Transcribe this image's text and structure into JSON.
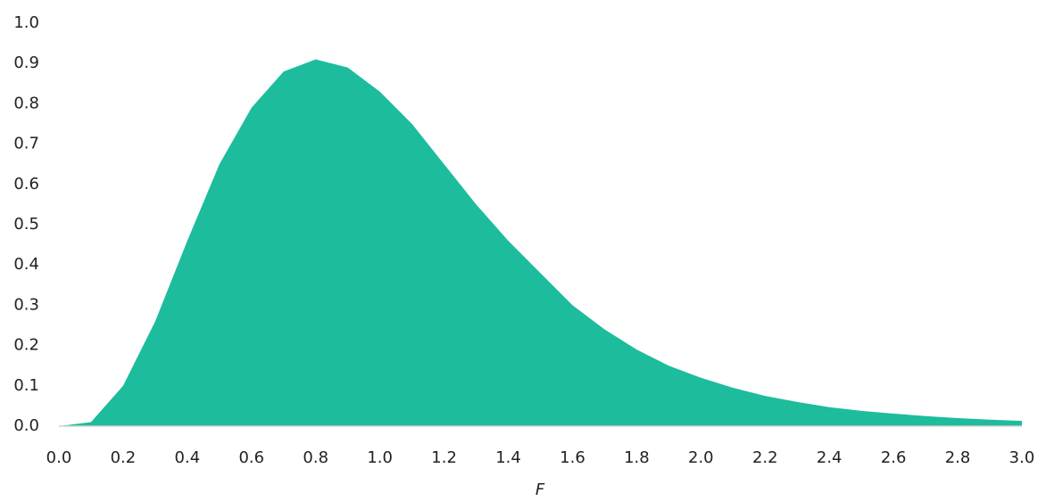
{
  "chart_data": {
    "type": "area",
    "x_label": "F",
    "color": "#1dbc9c",
    "x": [
      0.0,
      0.1,
      0.2,
      0.3,
      0.4,
      0.5,
      0.6,
      0.7,
      0.8,
      0.9,
      1.0,
      1.1,
      1.2,
      1.3,
      1.4,
      1.5,
      1.6,
      1.7,
      1.8,
      1.9,
      2.0,
      2.1,
      2.2,
      2.3,
      2.4,
      2.5,
      2.6,
      2.7,
      2.8,
      2.9,
      3.0
    ],
    "values": [
      0,
      0.01,
      0.1,
      0.26,
      0.46,
      0.65,
      0.79,
      0.88,
      0.91,
      0.89,
      0.83,
      0.75,
      0.65,
      0.55,
      0.46,
      0.38,
      0.3,
      0.24,
      0.19,
      0.15,
      0.12,
      0.095,
      0.075,
      0.06,
      0.047,
      0.038,
      0.031,
      0.025,
      0.02,
      0.016,
      0.013
    ],
    "xlim": [
      0,
      3
    ],
    "ylim": [
      0,
      1
    ],
    "xticks": [
      {
        "value": 0,
        "label": "0.0"
      },
      {
        "value": 0.2,
        "label": "0.2"
      },
      {
        "value": 0.4,
        "label": "0.4"
      },
      {
        "value": 0.6,
        "label": "0.6"
      },
      {
        "value": 0.8,
        "label": "0.8"
      },
      {
        "value": 1,
        "label": "1.0"
      },
      {
        "value": 1.2,
        "label": "1.2"
      },
      {
        "value": 1.4,
        "label": "1.4"
      },
      {
        "value": 1.6,
        "label": "1.6"
      },
      {
        "value": 1.8,
        "label": "1.8"
      },
      {
        "value": 2,
        "label": "2.0"
      },
      {
        "value": 2.2,
        "label": "2.2"
      },
      {
        "value": 2.4,
        "label": "2.4"
      },
      {
        "value": 2.6,
        "label": "2.6"
      },
      {
        "value": 2.8,
        "label": "2.8"
      },
      {
        "value": 3,
        "label": "3.0"
      }
    ],
    "yticks": [
      {
        "value": 0,
        "label": "0.0"
      },
      {
        "value": 0.1,
        "label": "0.1"
      },
      {
        "value": 0.2,
        "label": "0.2"
      },
      {
        "value": 0.3,
        "label": "0.3"
      },
      {
        "value": 0.4,
        "label": "0.4"
      },
      {
        "value": 0.5,
        "label": "0.5"
      },
      {
        "value": 0.6,
        "label": "0.6"
      },
      {
        "value": 0.7,
        "label": "0.7"
      },
      {
        "value": 0.8,
        "label": "0.8"
      },
      {
        "value": 0.9,
        "label": "0.9"
      },
      {
        "value": 1,
        "label": "1.0"
      }
    ]
  }
}
